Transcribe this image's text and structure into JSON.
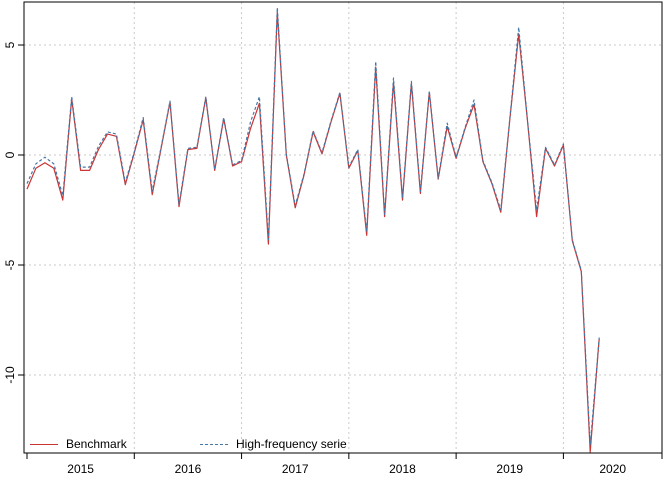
{
  "figure": {
    "background": "#ffffff",
    "box_color": "#000000",
    "grid_color": "#c9c9c9",
    "text_color": "#000000"
  },
  "y_axis": {
    "ticks": [
      5,
      0,
      -5,
      -10
    ],
    "labels": [
      "5",
      "0",
      "-5",
      "-10"
    ]
  },
  "x_axis": {
    "labels": [
      "2015",
      "2016",
      "2017",
      "2018",
      "2019",
      "2020"
    ]
  },
  "legend": {
    "items": [
      {
        "label": "Benchmark",
        "color": "#cc3333",
        "style": "solid"
      },
      {
        "label": "High-frequency serie",
        "color": "#4377a7",
        "style": "dashed"
      }
    ]
  },
  "chart_data": {
    "type": "line",
    "x_start": "2015-01",
    "x_end": "2020-05",
    "frequency": "monthly",
    "x_tick_years": [
      2015,
      2016,
      2017,
      2018,
      2019,
      2020
    ],
    "ylim": [
      -13.5,
      6.7
    ],
    "y_gridlines": [
      5,
      0,
      -5,
      -10
    ],
    "grid": true,
    "legend_position": "bottom-left",
    "series": [
      {
        "name": "Benchmark",
        "color": "#cc3333",
        "dash": "solid",
        "values": [
          -1.55,
          -0.6,
          -0.35,
          -0.6,
          -2.05,
          2.55,
          -0.7,
          -0.7,
          0.25,
          0.95,
          0.85,
          -1.35,
          0.1,
          1.6,
          -1.8,
          0.3,
          2.4,
          -2.35,
          0.25,
          0.3,
          2.6,
          -0.7,
          1.65,
          -0.5,
          -0.3,
          1.2,
          2.35,
          -4.05,
          6.5,
          0.0,
          -2.4,
          -0.9,
          1.05,
          0.05,
          1.5,
          2.8,
          -0.6,
          0.2,
          -3.65,
          4.0,
          -2.8,
          3.3,
          -2.05,
          3.25,
          -1.75,
          2.85,
          -1.1,
          1.3,
          -0.15,
          1.2,
          2.3,
          -0.3,
          -1.3,
          -2.6,
          1.6,
          5.5,
          1.5,
          -2.8,
          0.3,
          -0.5,
          0.45,
          -3.9,
          -5.3,
          -13.5,
          -8.35
        ]
      },
      {
        "name": "High-frequency serie",
        "color": "#4377a7",
        "dash": "dashed",
        "values": [
          -1.3,
          -0.4,
          -0.1,
          -0.4,
          -1.85,
          2.65,
          -0.55,
          -0.55,
          0.4,
          1.05,
          0.95,
          -1.25,
          0.15,
          1.7,
          -1.65,
          0.35,
          2.45,
          -2.25,
          0.3,
          0.35,
          2.65,
          -0.65,
          1.7,
          -0.45,
          -0.25,
          1.5,
          2.65,
          -3.85,
          6.7,
          0.05,
          -2.3,
          -0.85,
          1.1,
          0.1,
          1.55,
          2.85,
          -0.55,
          0.25,
          -3.5,
          4.25,
          -2.7,
          3.5,
          -1.95,
          3.35,
          -1.65,
          2.9,
          -1.05,
          1.45,
          -0.1,
          1.25,
          2.5,
          -0.25,
          -1.25,
          -2.5,
          1.65,
          5.8,
          1.55,
          -2.5,
          0.35,
          -0.45,
          0.5,
          -3.85,
          -5.25,
          -13.2,
          -8.3
        ]
      }
    ]
  }
}
